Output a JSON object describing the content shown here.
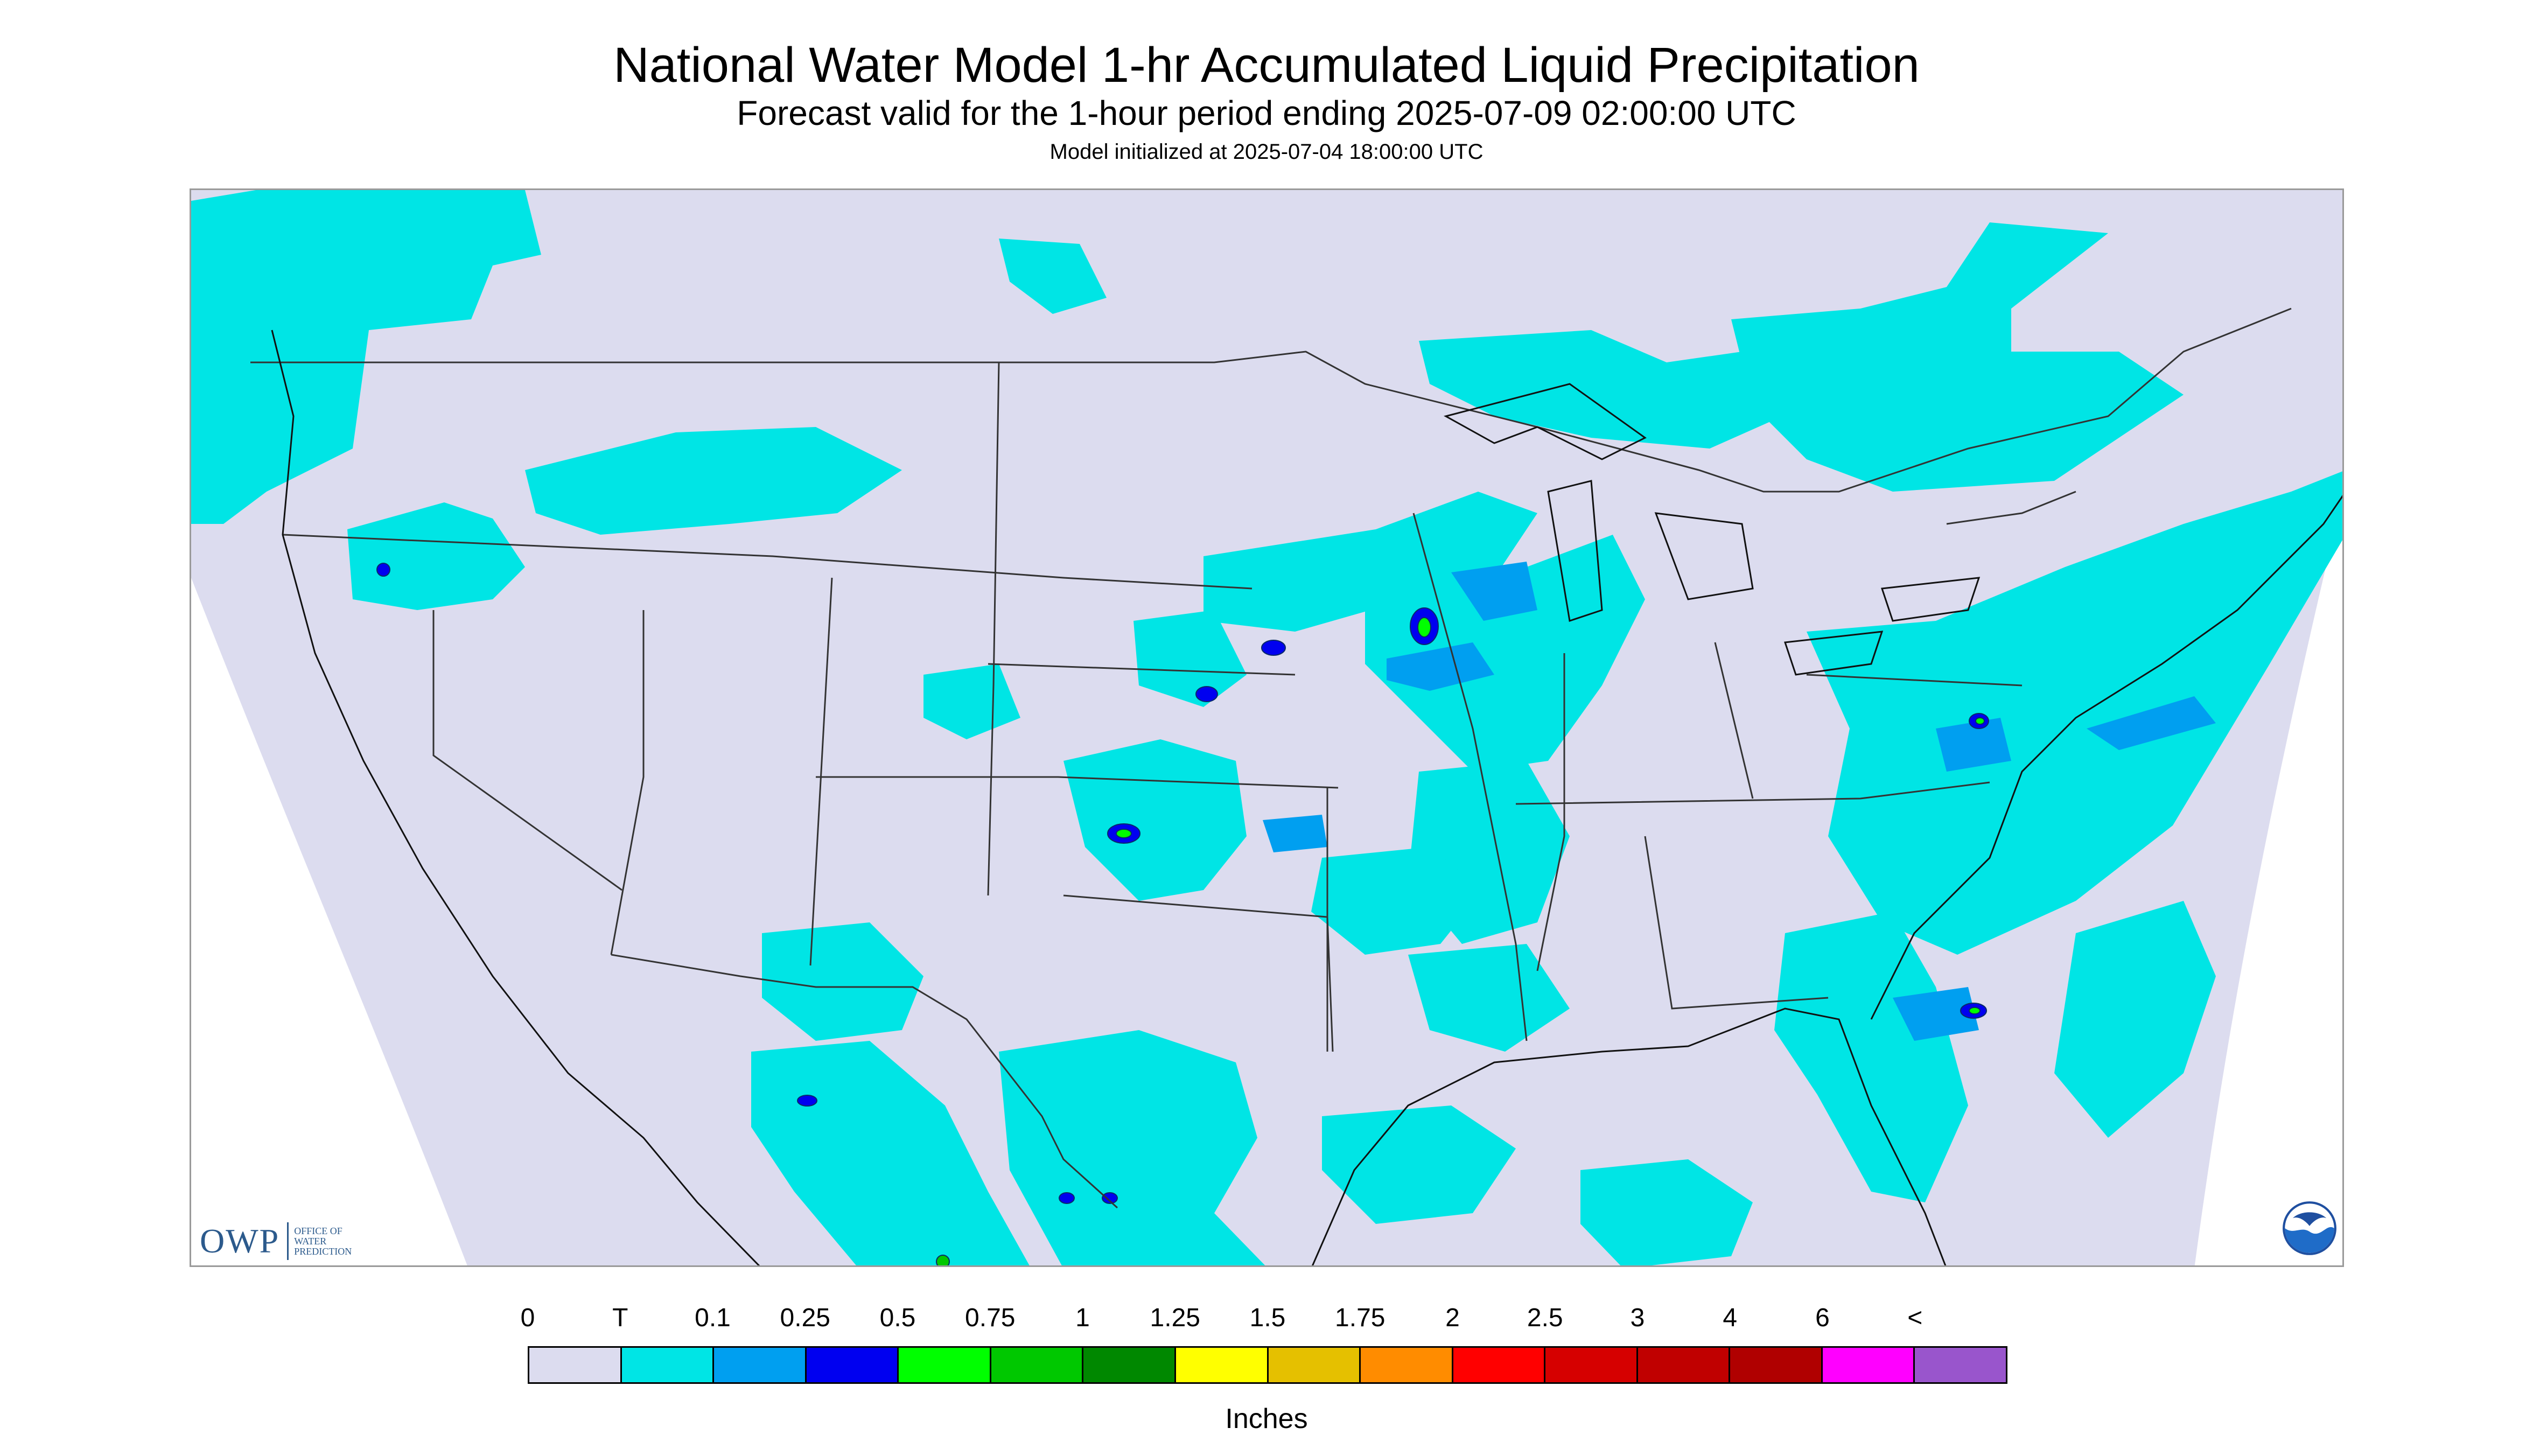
{
  "header": {
    "title": "National Water Model 1-hr Accumulated Liquid Precipitation",
    "subtitle": "Forecast valid for the 1-hour period ending 2025-07-09 02:00:00 UTC",
    "init": "Model initialized at 2025-07-04 18:00:00 UTC"
  },
  "map": {
    "background_color": "#dcdcef",
    "boundary_color": "#333333",
    "precip_colors": [
      "#00e5e5",
      "#009ff0",
      "#0000f0",
      "#00ff00",
      "#00c800"
    ]
  },
  "logos": {
    "owp_mark": "OWP",
    "owp_text": "OFFICE OF WATER PREDICTION",
    "noaa_icon": "noaa-emblem"
  },
  "legend": {
    "labels": [
      "0",
      "T",
      "0.1",
      "0.25",
      "0.5",
      "0.75",
      "1",
      "1.25",
      "1.5",
      "1.75",
      "2",
      "2.5",
      "3",
      "4",
      "6",
      "<"
    ],
    "colors": [
      "#dcdcef",
      "#00e5e5",
      "#009ff0",
      "#0000f0",
      "#00ff00",
      "#00c800",
      "#008800",
      "#ffff00",
      "#e5c000",
      "#ff8c00",
      "#ff0000",
      "#d60000",
      "#c00000",
      "#b00000",
      "#ff00ff",
      "#9955cc"
    ],
    "units": "Inches"
  }
}
